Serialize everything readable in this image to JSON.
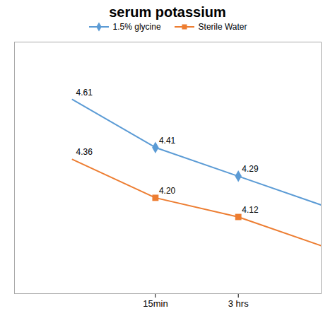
{
  "chart_data": {
    "type": "line",
    "title": "serum potassium",
    "x": [
      0,
      1,
      2,
      3
    ],
    "series": [
      {
        "name": "1.5% glycine",
        "color": "#5B9BD5",
        "marker": "diamond",
        "values": [
          4.61,
          4.41,
          4.29,
          4.17
        ]
      },
      {
        "name": "Sterile Water",
        "color": "#ED7D31",
        "marker": "square",
        "values": [
          4.36,
          4.2,
          4.12,
          4.0
        ]
      }
    ],
    "xlim": [
      -0.7,
      3.0
    ],
    "xticks": [
      {
        "value": 1,
        "label": "15min"
      },
      {
        "value": 2,
        "label": "3 hrs"
      }
    ],
    "ylim": [
      3.8,
      4.85
    ],
    "tick_labels": "x",
    "grid": false,
    "legend": "top",
    "annotations": [
      {
        "text": "4.61",
        "x": 0,
        "y": 4.61
      },
      {
        "text": "4.41",
        "x": 1,
        "y": 4.41
      },
      {
        "text": "4.29",
        "x": 2,
        "y": 4.29
      },
      {
        "text": "4.36",
        "x": 0,
        "y": 4.36
      },
      {
        "text": "4.20",
        "x": 1,
        "y": 4.2
      },
      {
        "text": "4.12",
        "x": 2,
        "y": 4.12
      }
    ]
  }
}
